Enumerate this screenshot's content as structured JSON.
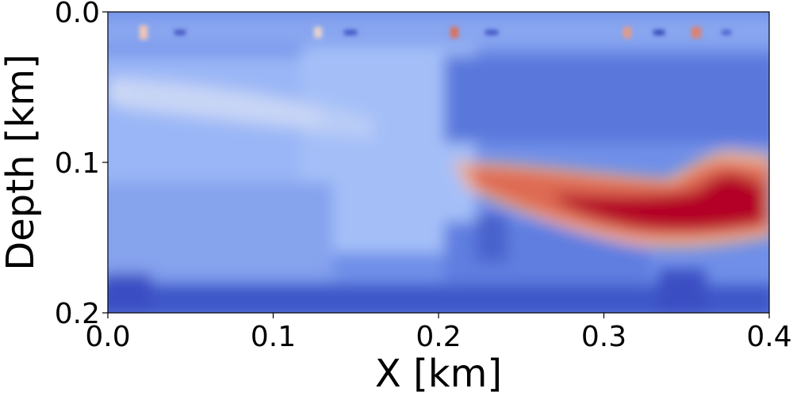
{
  "chart_data": {
    "type": "heatmap",
    "title": "",
    "xlabel": "X [km]",
    "ylabel": "Depth [km]",
    "xlim": [
      0.0,
      0.4
    ],
    "ylim": [
      0.0,
      0.2
    ],
    "y_inverted": true,
    "x_ticks": [
      "0.0",
      "0.1",
      "0.2",
      "0.3",
      "0.4"
    ],
    "y_ticks": [
      "0.0",
      "0.1",
      "0.2"
    ],
    "colormap": "coolwarm",
    "colorbar": false,
    "colors": {
      "cold": "#3b4cc0",
      "neutral": "#dddddd",
      "hot": "#b40426"
    },
    "features": [
      {
        "label": "high-velocity body",
        "x_range_km": [
          0.21,
          0.4
        ],
        "depth_range_km": [
          0.095,
          0.155
        ],
        "level": "high"
      },
      {
        "label": "pale band",
        "x_range_km": [
          0.0,
          0.18
        ],
        "depth_range_km": [
          0.045,
          0.065
        ],
        "level": "medium-low"
      },
      {
        "label": "low zone at base",
        "x_range_km": [
          0.0,
          0.4
        ],
        "depth_range_km": [
          0.185,
          0.2
        ],
        "level": "low"
      }
    ]
  }
}
